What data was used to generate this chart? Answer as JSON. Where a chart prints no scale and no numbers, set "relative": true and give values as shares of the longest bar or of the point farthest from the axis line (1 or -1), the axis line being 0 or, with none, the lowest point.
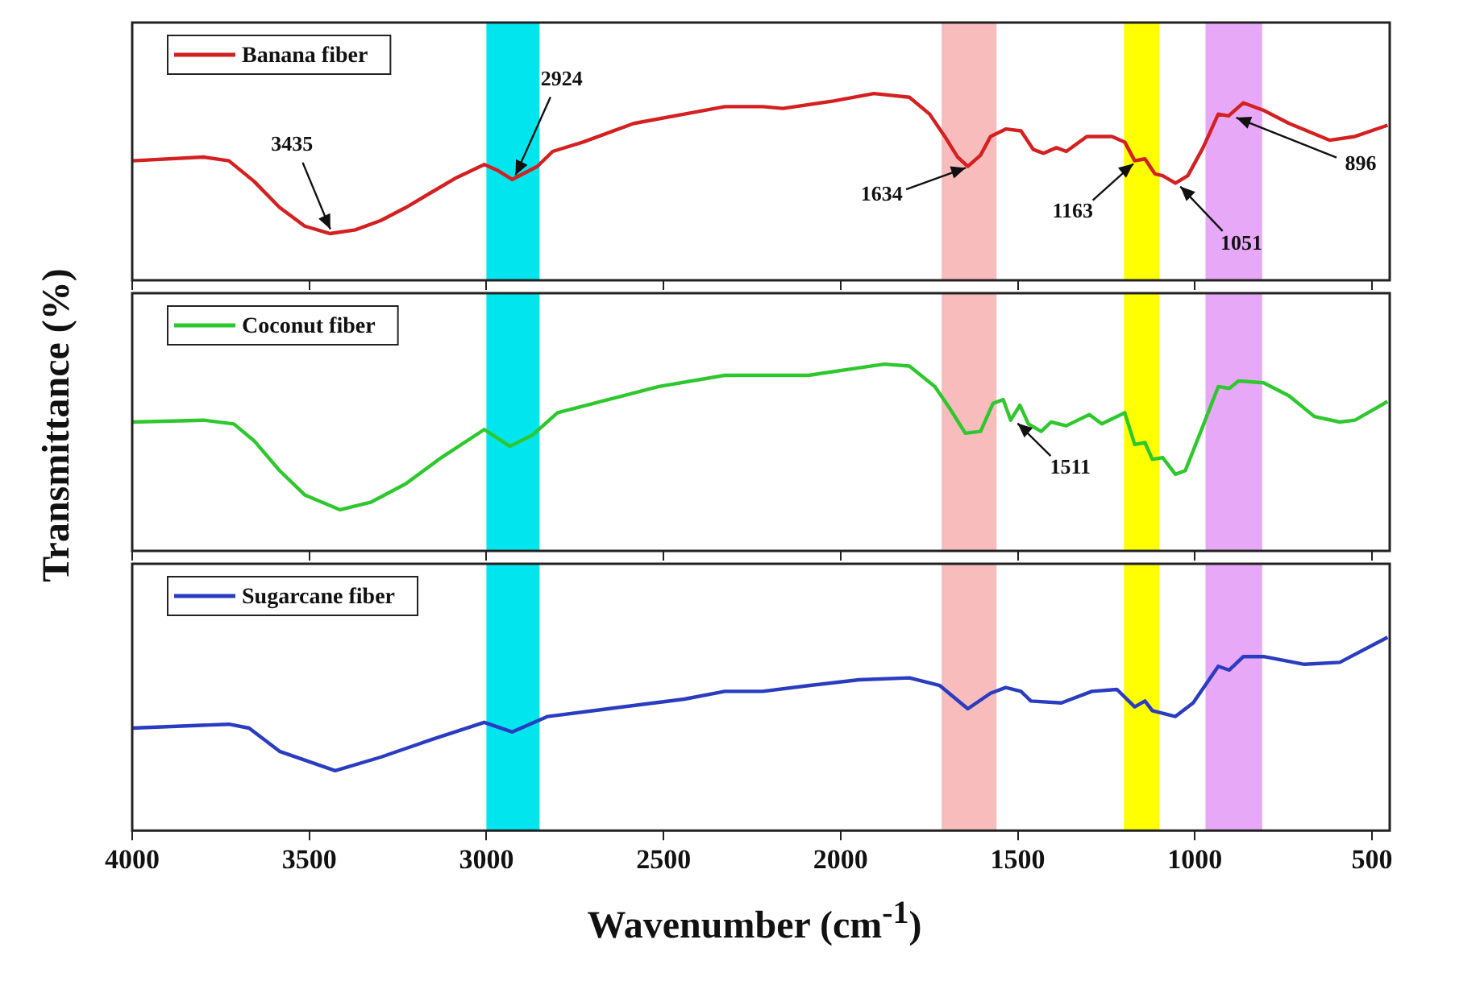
{
  "chart_data": [
    {
      "type": "line",
      "relative": true,
      "legend": "top left",
      "grid": false,
      "tick_labels": false,
      "xlim": [
        4000,
        450
      ],
      "xticks": [
        4000,
        3500,
        3000,
        2500,
        2000,
        1500,
        1000,
        500
      ],
      "series": [
        {
          "name": "Banana fiber",
          "color": "#d42020",
          "x": [
            4000,
            3799,
            3727,
            3656,
            3584,
            3513,
            3441,
            3370,
            3298,
            3227,
            3156,
            3084,
            3006,
            2970,
            2927,
            2856,
            2813,
            2727,
            2584,
            2441,
            2327,
            2220,
            2163,
            2020,
            1906,
            1806,
            1749,
            1706,
            1670,
            1641,
            1605,
            1577,
            1534,
            1491,
            1456,
            1427,
            1391,
            1363,
            1334,
            1305,
            1234,
            1198,
            1170,
            1141,
            1113,
            1091,
            1055,
            1020,
            977,
            934,
            905,
            863,
            806,
            734,
            620,
            548,
            456
          ],
          "values": [
            0.64,
            0.66,
            0.64,
            0.53,
            0.39,
            0.29,
            0.25,
            0.27,
            0.32,
            0.39,
            0.47,
            0.55,
            0.62,
            0.59,
            0.54,
            0.61,
            0.69,
            0.74,
            0.84,
            0.89,
            0.93,
            0.93,
            0.92,
            0.96,
            1,
            0.98,
            0.89,
            0.77,
            0.66,
            0.61,
            0.67,
            0.77,
            0.81,
            0.8,
            0.7,
            0.68,
            0.71,
            0.69,
            0.73,
            0.77,
            0.77,
            0.74,
            0.64,
            0.65,
            0.57,
            0.56,
            0.52,
            0.56,
            0.71,
            0.89,
            0.88,
            0.95,
            0.91,
            0.84,
            0.75,
            0.77,
            0.83
          ]
        }
      ],
      "bands": [
        {
          "axis": "x",
          "from": 3000,
          "to": 2850,
          "color": "#00e5ee"
        },
        {
          "axis": "x",
          "from": 1715,
          "to": 1560,
          "color": "#f8bcbc"
        },
        {
          "axis": "x",
          "from": 1200,
          "to": 1100,
          "color": "#ffff00"
        },
        {
          "axis": "x",
          "from": 970,
          "to": 810,
          "color": "#e8a8f8"
        }
      ],
      "annotations": [
        {
          "text": "3435",
          "x": 3435,
          "y": 0.25
        },
        {
          "text": "2924",
          "x": 2924,
          "y": 0.54
        },
        {
          "text": "1634",
          "x": 1634,
          "y": 0.61
        },
        {
          "text": "1163",
          "x": 1163,
          "y": 0.64
        },
        {
          "text": "1051",
          "x": 1051,
          "y": 0.52
        },
        {
          "text": "896",
          "x": 896,
          "y": 0.88
        }
      ]
    },
    {
      "type": "line",
      "relative": true,
      "legend": "top left",
      "grid": false,
      "tick_labels": false,
      "xlim": [
        4000,
        450
      ],
      "xticks": [
        4000,
        3500,
        3000,
        2500,
        2000,
        1500,
        1000,
        500
      ],
      "ylabel": "Transmittance (%)",
      "series": [
        {
          "name": "Coconut fiber",
          "color": "#2ec82e",
          "x": [
            4000,
            3799,
            3713,
            3656,
            3584,
            3513,
            3413,
            3327,
            3227,
            3127,
            3006,
            2934,
            2870,
            2799,
            2656,
            2513,
            2327,
            2220,
            2091,
            1877,
            1806,
            1734,
            1691,
            1648,
            1605,
            1570,
            1541,
            1520,
            1494,
            1470,
            1434,
            1406,
            1363,
            1298,
            1263,
            1198,
            1170,
            1141,
            1120,
            1091,
            1055,
            1027,
            977,
            934,
            903,
            877,
            806,
            734,
            663,
            591,
            548,
            456
          ],
          "values": [
            0.69,
            0.7,
            0.68,
            0.59,
            0.43,
            0.3,
            0.22,
            0.26,
            0.36,
            0.5,
            0.65,
            0.56,
            0.62,
            0.74,
            0.81,
            0.88,
            0.94,
            0.94,
            0.94,
            1,
            0.99,
            0.88,
            0.76,
            0.63,
            0.64,
            0.79,
            0.81,
            0.7,
            0.78,
            0.68,
            0.64,
            0.69,
            0.67,
            0.73,
            0.68,
            0.74,
            0.57,
            0.58,
            0.49,
            0.5,
            0.41,
            0.43,
            0.67,
            0.88,
            0.87,
            0.91,
            0.9,
            0.83,
            0.72,
            0.69,
            0.7,
            0.8
          ]
        }
      ],
      "bands": [
        {
          "axis": "x",
          "from": 3000,
          "to": 2850,
          "color": "#00e5ee"
        },
        {
          "axis": "x",
          "from": 1715,
          "to": 1560,
          "color": "#f8bcbc"
        },
        {
          "axis": "x",
          "from": 1200,
          "to": 1100,
          "color": "#ffff00"
        },
        {
          "axis": "x",
          "from": 970,
          "to": 810,
          "color": "#e8a8f8"
        }
      ],
      "annotations": [
        {
          "text": "1511",
          "x": 1511,
          "y": 0.7
        }
      ]
    },
    {
      "type": "line",
      "relative": true,
      "legend": "top left",
      "grid": false,
      "tick_labels": "x",
      "xlim": [
        4000,
        450
      ],
      "xticks": [
        4000,
        3500,
        3000,
        2500,
        2000,
        1500,
        1000,
        500
      ],
      "xlabel": "Wavenumber (cm$^{-1}$)",
      "series": [
        {
          "name": "Sugarcane fiber",
          "color": "#2a3cc0",
          "x": [
            4000,
            3727,
            3670,
            3584,
            3427,
            3298,
            3156,
            3006,
            2927,
            2827,
            2656,
            2441,
            2327,
            2220,
            2091,
            1948,
            1806,
            1720,
            1641,
            1577,
            1534,
            1491,
            1463,
            1377,
            1291,
            1220,
            1170,
            1141,
            1120,
            1055,
            1005,
            934,
            903,
            863,
            806,
            691,
            591,
            456
          ],
          "values": [
            0.53,
            0.55,
            0.53,
            0.41,
            0.31,
            0.38,
            0.47,
            0.56,
            0.51,
            0.59,
            0.63,
            0.68,
            0.72,
            0.72,
            0.75,
            0.78,
            0.79,
            0.75,
            0.63,
            0.71,
            0.74,
            0.72,
            0.67,
            0.66,
            0.72,
            0.73,
            0.64,
            0.67,
            0.62,
            0.59,
            0.66,
            0.85,
            0.83,
            0.9,
            0.9,
            0.86,
            0.87,
            1
          ]
        }
      ],
      "bands": [
        {
          "axis": "x",
          "from": 3000,
          "to": 2850,
          "color": "#00e5ee"
        },
        {
          "axis": "x",
          "from": 1715,
          "to": 1560,
          "color": "#f8bcbc"
        },
        {
          "axis": "x",
          "from": 1200,
          "to": 1100,
          "color": "#ffff00"
        },
        {
          "axis": "x",
          "from": 970,
          "to": 810,
          "color": "#e8a8f8"
        }
      ]
    }
  ]
}
